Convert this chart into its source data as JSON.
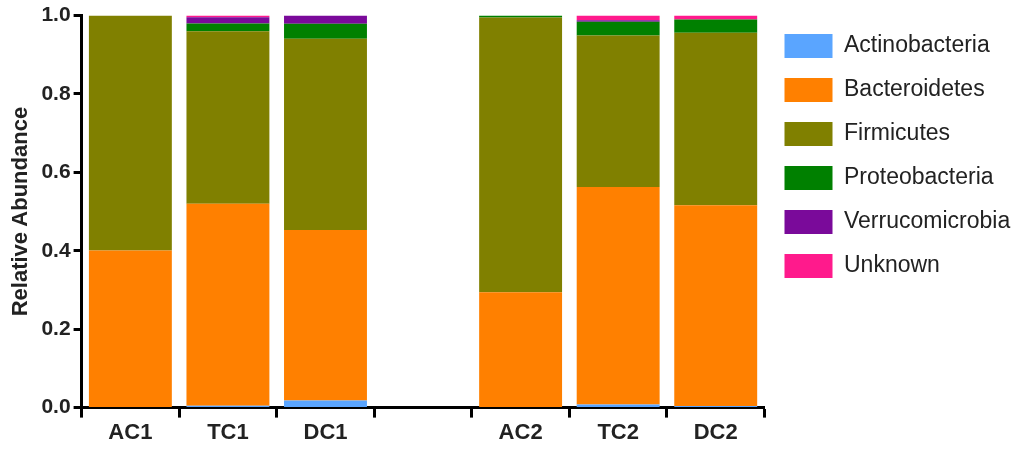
{
  "chart_data": {
    "type": "bar",
    "stacked": true,
    "ylabel": "Relative Abundance",
    "categories": [
      "AC1",
      "TC1",
      "DC1",
      null,
      "AC2",
      "TC2",
      "DC2"
    ],
    "series": [
      {
        "name": "Actinobacteria",
        "color": "#5aa5ff",
        "values": [
          0,
          0.005,
          0.018,
          null,
          0,
          0.008,
          0.004
        ]
      },
      {
        "name": "Bacteroidetes",
        "color": "#ff8000",
        "values": [
          0.401,
          0.515,
          0.435,
          null,
          0.294,
          0.555,
          0.512
        ]
      },
      {
        "name": "Firmicutes",
        "color": "#808000",
        "values": [
          0.599,
          0.44,
          0.488,
          null,
          0.701,
          0.386,
          0.44
        ]
      },
      {
        "name": "Proteobacteria",
        "color": "#008000",
        "values": [
          0,
          0.02,
          0.038,
          null,
          0.005,
          0.035,
          0.034
        ]
      },
      {
        "name": "Verrucomicrobia",
        "color": "#7a0a9a",
        "values": [
          0,
          0.016,
          0.021,
          null,
          0,
          0.004,
          0
        ]
      },
      {
        "name": "Unknown",
        "color": "#ff1a8c",
        "values": [
          0,
          0.004,
          0,
          null,
          0,
          0.012,
          0.01
        ]
      }
    ],
    "ylim": [
      0,
      1
    ],
    "yticks": [
      {
        "value": 0,
        "label": "0.0"
      },
      {
        "value": 0.2,
        "label": "0.2"
      },
      {
        "value": 0.4,
        "label": "0.4"
      },
      {
        "value": 0.6,
        "label": "0.6"
      },
      {
        "value": 0.8,
        "label": "0.8"
      },
      {
        "value": 1,
        "label": "1.0"
      }
    ],
    "grid": false,
    "legend": "right"
  }
}
